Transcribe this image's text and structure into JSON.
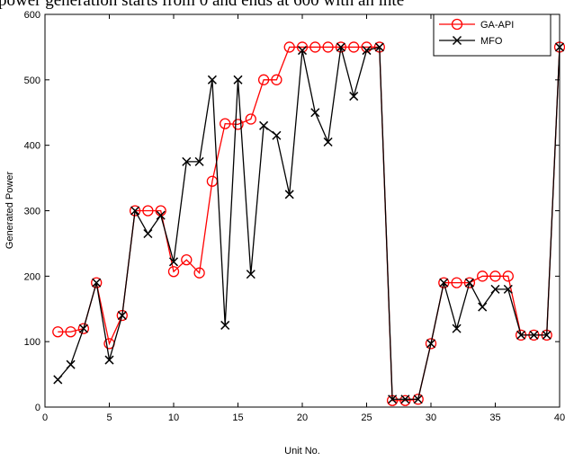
{
  "caption": "power generation starts from 0 and ends at 600 with an inte",
  "chart_data": {
    "type": "line",
    "x_label": "Unit No.",
    "y_label": "Generated Power",
    "x": [
      1,
      2,
      3,
      4,
      5,
      6,
      7,
      8,
      9,
      10,
      11,
      12,
      13,
      14,
      15,
      16,
      17,
      18,
      19,
      20,
      21,
      22,
      23,
      24,
      25,
      26,
      27,
      28,
      29,
      30,
      31,
      32,
      33,
      34,
      35,
      36,
      37,
      38,
      39,
      40
    ],
    "series": [
      {
        "name": "GA-API",
        "color": "#ff0000",
        "marker": "circle",
        "values": [
          115,
          115,
          120,
          190,
          97,
          140,
          300,
          300,
          300,
          207,
          225,
          205,
          345,
          433,
          432,
          440,
          500,
          500,
          550,
          550,
          550,
          550,
          550,
          550,
          550,
          550,
          10,
          10,
          12,
          97,
          190,
          190,
          190,
          200,
          200,
          200,
          110,
          110,
          110,
          550
        ]
      },
      {
        "name": "MFO",
        "color": "#000000",
        "marker": "x",
        "values": [
          42,
          65,
          120,
          190,
          72,
          140,
          300,
          265,
          293,
          222,
          375,
          375,
          500,
          125,
          500,
          203,
          430,
          415,
          325,
          545,
          450,
          405,
          550,
          475,
          545,
          550,
          12,
          12,
          12,
          97,
          190,
          120,
          190,
          153,
          180,
          180,
          110,
          110,
          110,
          550
        ]
      }
    ],
    "xlim": [
      0,
      40
    ],
    "xticks": [
      0,
      5,
      10,
      15,
      20,
      25,
      30,
      35,
      40
    ],
    "ylim": [
      0,
      600
    ],
    "yticks": [
      0,
      100,
      200,
      300,
      400,
      500,
      600
    ],
    "legend": "upper right"
  }
}
